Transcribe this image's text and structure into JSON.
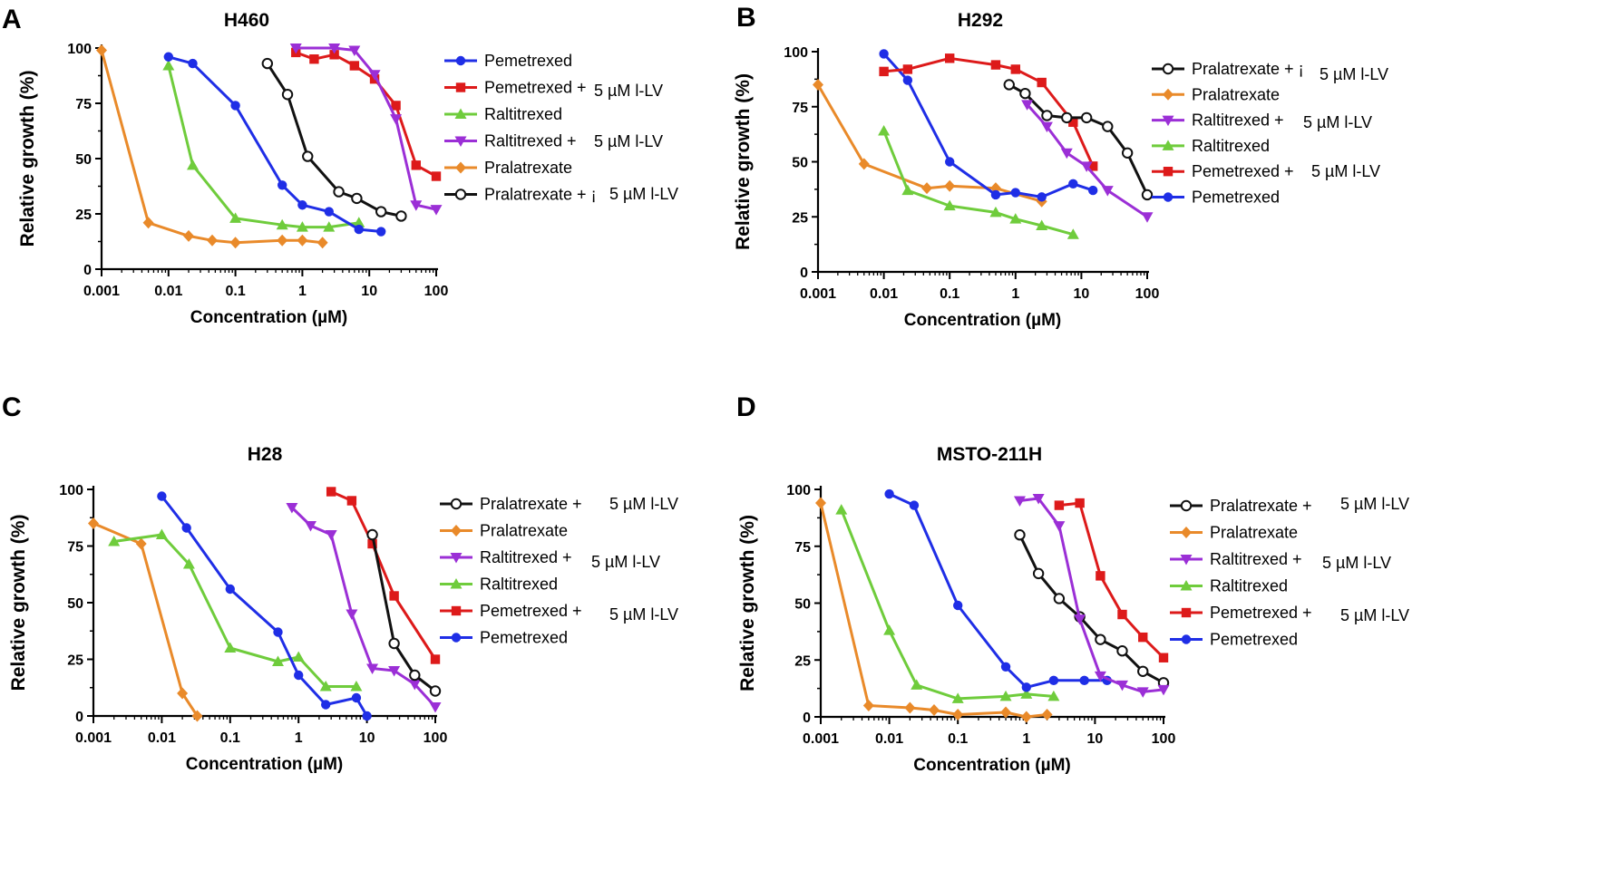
{
  "chart_data": [
    {
      "panel": "A",
      "type": "line",
      "title": "H460",
      "xlabel": "Concentration (µM)",
      "ylabel": "Relative growth (%)",
      "xscale": "log",
      "xlim": [
        0.001,
        100
      ],
      "ylim": [
        0,
        100
      ],
      "xticks": [
        "0.001",
        "0.01",
        "0.1",
        "1",
        "10",
        "100"
      ],
      "yticks": [
        "0",
        "25",
        "50",
        "75",
        "100"
      ],
      "legend": [
        {
          "series": "pemetrexed",
          "label": "Pemetrexed",
          "suffix": ""
        },
        {
          "series": "pemetrexed_lv",
          "label": "Pemetrexed +",
          "suffix": "5 µM l-LV"
        },
        {
          "series": "raltitrexed",
          "label": "Raltitrexed",
          "suffix": ""
        },
        {
          "series": "raltitrexed_lv",
          "label": "Raltitrexed +",
          "suffix": "5 µM l-LV"
        },
        {
          "series": "pralatrexate",
          "label": "Pralatrexate",
          "suffix": ""
        },
        {
          "series": "pralatrexate_lv",
          "label": "Pralatrexate + ¡",
          "suffix": "5 µM l-LV"
        }
      ],
      "series": [
        {
          "id": "pralatrexate",
          "name": "Pralatrexate",
          "x": [
            0.001,
            0.005,
            0.02,
            0.045,
            0.1,
            0.5,
            1,
            2
          ],
          "y": [
            99,
            21,
            15,
            13,
            12,
            13,
            13,
            12
          ]
        },
        {
          "id": "raltitrexed",
          "name": "Raltitrexed",
          "x": [
            0.01,
            0.023,
            0.1,
            0.5,
            1,
            2.5,
            7
          ],
          "y": [
            92,
            47,
            23,
            20,
            19,
            19,
            21
          ]
        },
        {
          "id": "pemetrexed",
          "name": "Pemetrexed",
          "x": [
            0.01,
            0.023,
            0.1,
            0.5,
            1,
            2.5,
            7,
            15
          ],
          "y": [
            96,
            93,
            74,
            38,
            29,
            26,
            18,
            17
          ]
        },
        {
          "id": "pralatrexate_lv",
          "name": "Pralatrexate + 5 µM l-LV",
          "x": [
            0.3,
            0.6,
            1.2,
            3.5,
            6.5,
            15,
            30
          ],
          "y": [
            93,
            79,
            51,
            35,
            32,
            26,
            24
          ]
        },
        {
          "id": "pemetrexed_lv",
          "name": "Pemetrexed + 5 µM l-LV",
          "x": [
            0.8,
            1.5,
            3,
            6,
            12,
            25,
            50,
            100
          ],
          "y": [
            98,
            95,
            97,
            92,
            86,
            74,
            47,
            42
          ]
        },
        {
          "id": "raltitrexed_lv",
          "name": "Raltitrexed + 5 µM l-LV",
          "x": [
            0.8,
            3,
            6,
            12,
            25,
            50,
            100
          ],
          "y": [
            100,
            100,
            99,
            88,
            68,
            29,
            27
          ]
        }
      ]
    },
    {
      "panel": "B",
      "type": "line",
      "title": "H292",
      "xlabel": "Concentration (µM)",
      "ylabel": "Relative growth (%)",
      "xscale": "log",
      "xlim": [
        0.001,
        100
      ],
      "ylim": [
        0,
        100
      ],
      "xticks": [
        "0.001",
        "0.01",
        "0.1",
        "1",
        "10",
        "100"
      ],
      "yticks": [
        "0",
        "25",
        "50",
        "75",
        "100"
      ],
      "legend": [
        {
          "series": "pralatrexate_lv",
          "label": "Pralatrexate + ¡",
          "suffix": "5 µM l-LV"
        },
        {
          "series": "pralatrexate",
          "label": "Pralatrexate",
          "suffix": ""
        },
        {
          "series": "raltitrexed_lv",
          "label": "Raltitrexed +",
          "suffix": "5 µM l-LV"
        },
        {
          "series": "raltitrexed",
          "label": "Raltitrexed",
          "suffix": ""
        },
        {
          "series": "pemetrexed_lv",
          "label": "Pemetrexed +",
          "suffix": "5 µM l-LV"
        },
        {
          "series": "pemetrexed",
          "label": "Pemetrexed",
          "suffix": ""
        }
      ],
      "series": [
        {
          "id": "pralatrexate",
          "name": "Pralatrexate",
          "x": [
            0.001,
            0.005,
            0.045,
            0.1,
            0.5,
            2.5
          ],
          "y": [
            85,
            49,
            38,
            39,
            38,
            32
          ]
        },
        {
          "id": "raltitrexed",
          "name": "Raltitrexed",
          "x": [
            0.01,
            0.023,
            0.1,
            0.5,
            1,
            2.5,
            7.5
          ],
          "y": [
            64,
            37,
            30,
            27,
            24,
            21,
            17
          ]
        },
        {
          "id": "pemetrexed",
          "name": "Pemetrexed",
          "x": [
            0.01,
            0.023,
            0.1,
            0.5,
            1,
            2.5,
            7.5,
            15
          ],
          "y": [
            99,
            87,
            50,
            35,
            36,
            34,
            40,
            37
          ]
        },
        {
          "id": "pemetrexed_lv",
          "name": "Pemetrexed + 5 µM l-LV",
          "x": [
            0.01,
            0.023,
            0.1,
            0.5,
            1,
            2.5,
            7.5,
            15
          ],
          "y": [
            91,
            92,
            97,
            94,
            92,
            86,
            68,
            48
          ]
        },
        {
          "id": "pralatrexate_lv",
          "name": "Pralatrexate + 5 µM l-LV",
          "x": [
            0.8,
            1.4,
            3,
            6,
            12,
            25,
            50,
            100
          ],
          "y": [
            85,
            81,
            71,
            70,
            70,
            66,
            54,
            35
          ]
        },
        {
          "id": "raltitrexed_lv",
          "name": "Raltitrexed + 5 µM l-LV",
          "x": [
            1.5,
            3,
            6,
            12,
            25,
            100
          ],
          "y": [
            76,
            66,
            54,
            48,
            37,
            25
          ]
        }
      ]
    },
    {
      "panel": "C",
      "type": "line",
      "title": "H28",
      "xlabel": "Concentration (µM)",
      "ylabel": "Relative growth (%)",
      "xscale": "log",
      "xlim": [
        0.001,
        100
      ],
      "ylim": [
        0,
        100
      ],
      "xticks": [
        "0.001",
        "0.01",
        "0.1",
        "1",
        "10",
        "100"
      ],
      "yticks": [
        "0",
        "25",
        "50",
        "75",
        "100"
      ],
      "legend": [
        {
          "series": "pralatrexate_lv",
          "label": "Pralatrexate +",
          "suffix": "5 µM l-LV"
        },
        {
          "series": "pralatrexate",
          "label": "Pralatrexate",
          "suffix": ""
        },
        {
          "series": "raltitrexed_lv",
          "label": "Raltitrexed +",
          "suffix": "5 µM l-LV"
        },
        {
          "series": "raltitrexed",
          "label": "Raltitrexed",
          "suffix": ""
        },
        {
          "series": "pemetrexed_lv",
          "label": "Pemetrexed +",
          "suffix": "5 µM l-LV"
        },
        {
          "series": "pemetrexed",
          "label": "Pemetrexed",
          "suffix": ""
        }
      ],
      "series": [
        {
          "id": "pralatrexate",
          "name": "Pralatrexate",
          "x": [
            0.001,
            0.005,
            0.02,
            0.033
          ],
          "y": [
            85,
            76,
            10,
            0
          ]
        },
        {
          "id": "raltitrexed",
          "name": "Raltitrexed",
          "x": [
            0.002,
            0.01,
            0.025,
            0.1,
            0.5,
            1,
            2.5,
            7
          ],
          "y": [
            77,
            80,
            67,
            30,
            24,
            26,
            13,
            13
          ]
        },
        {
          "id": "pemetrexed",
          "name": "Pemetrexed",
          "x": [
            0.01,
            0.023,
            0.1,
            0.5,
            1,
            2.5,
            7,
            10
          ],
          "y": [
            97,
            83,
            56,
            37,
            18,
            5,
            8,
            0
          ]
        },
        {
          "id": "raltitrexed_lv",
          "name": "Raltitrexed + 5 µM l-LV",
          "x": [
            0.8,
            1.5,
            3,
            6,
            12,
            25,
            50,
            100
          ],
          "y": [
            92,
            84,
            80,
            45,
            21,
            20,
            14,
            4
          ]
        },
        {
          "id": "pemetrexed_lv",
          "name": "Pemetrexed + 5 µM l-LV",
          "x": [
            3,
            6,
            12,
            25,
            100
          ],
          "y": [
            99,
            95,
            76,
            53,
            25
          ]
        },
        {
          "id": "pralatrexate_lv",
          "name": "Pralatrexate + 5 µM l-LV",
          "x": [
            12,
            25,
            50,
            100
          ],
          "y": [
            80,
            32,
            18,
            11
          ]
        }
      ]
    },
    {
      "panel": "D",
      "type": "line",
      "title": "MSTO-211H",
      "xlabel": "Concentration (µM)",
      "ylabel": "Relative growth (%)",
      "xscale": "log",
      "xlim": [
        0.001,
        100
      ],
      "ylim": [
        0,
        100
      ],
      "xticks": [
        "0.001",
        "0.01",
        "0.1",
        "1",
        "10",
        "100"
      ],
      "yticks": [
        "0",
        "25",
        "50",
        "75",
        "100"
      ],
      "legend": [
        {
          "series": "pralatrexate_lv",
          "label": "Pralatrexate +",
          "suffix": "5 µM l-LV"
        },
        {
          "series": "pralatrexate",
          "label": "Pralatrexate",
          "suffix": ""
        },
        {
          "series": "raltitrexed_lv",
          "label": "Raltitrexed +",
          "suffix": "5 µM l-LV"
        },
        {
          "series": "raltitrexed",
          "label": "Raltitrexed",
          "suffix": ""
        },
        {
          "series": "pemetrexed_lv",
          "label": "Pemetrexed +",
          "suffix": "5 µM l-LV"
        },
        {
          "series": "pemetrexed",
          "label": "Pemetrexed",
          "suffix": ""
        }
      ],
      "series": [
        {
          "id": "pralatrexate",
          "name": "Pralatrexate",
          "x": [
            0.001,
            0.005,
            0.02,
            0.045,
            0.1,
            0.5,
            1,
            2
          ],
          "y": [
            94,
            5,
            4,
            3,
            1,
            2,
            0,
            1
          ]
        },
        {
          "id": "raltitrexed",
          "name": "Raltitrexed",
          "x": [
            0.002,
            0.01,
            0.025,
            0.1,
            0.5,
            1,
            2.5
          ],
          "y": [
            91,
            38,
            14,
            8,
            9,
            10,
            9
          ]
        },
        {
          "id": "pemetrexed",
          "name": "Pemetrexed",
          "x": [
            0.01,
            0.023,
            0.1,
            0.5,
            1,
            2.5,
            7,
            15
          ],
          "y": [
            98,
            93,
            49,
            22,
            13,
            16,
            16,
            16
          ]
        },
        {
          "id": "pralatrexate_lv",
          "name": "Pralatrexate + 5 µM l-LV",
          "x": [
            0.8,
            1.5,
            3,
            6,
            12,
            25,
            50,
            100
          ],
          "y": [
            80,
            63,
            52,
            44,
            34,
            29,
            20,
            15
          ]
        },
        {
          "id": "raltitrexed_lv",
          "name": "Raltitrexed + 5 µM l-LV",
          "x": [
            0.8,
            1.5,
            3,
            6,
            12,
            25,
            50,
            100
          ],
          "y": [
            95,
            96,
            84,
            43,
            18,
            14,
            11,
            12
          ]
        },
        {
          "id": "pemetrexed_lv",
          "name": "Pemetrexed + 5 µM l-LV",
          "x": [
            3,
            6,
            12,
            25,
            50,
            100
          ],
          "y": [
            93,
            94,
            62,
            45,
            35,
            26
          ]
        }
      ]
    }
  ],
  "panel_letters": [
    "A",
    "B",
    "C",
    "D"
  ],
  "styles": {
    "pemetrexed": {
      "color": "#1f2ee6",
      "marker": "circle"
    },
    "pemetrexed_lv": {
      "color": "#dd1a1a",
      "marker": "square"
    },
    "raltitrexed": {
      "color": "#6fcc3c",
      "marker": "triangle-up"
    },
    "raltitrexed_lv": {
      "color": "#9b2fd6",
      "marker": "triangle-down"
    },
    "pralatrexate": {
      "color": "#e98a2a",
      "marker": "diamond"
    },
    "pralatrexate_lv": {
      "color": "#111111",
      "marker": "open-circle"
    }
  }
}
